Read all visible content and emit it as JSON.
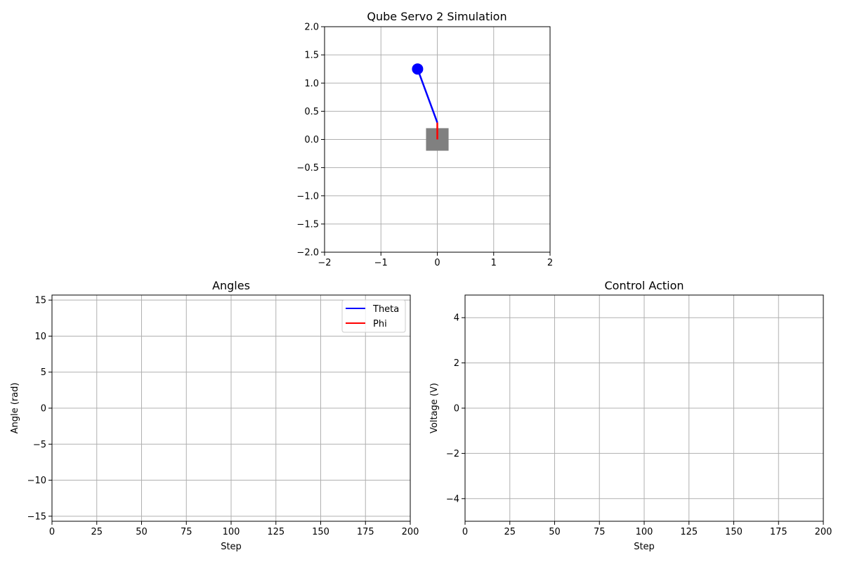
{
  "chart_data": [
    {
      "id": "sim",
      "type": "scatter",
      "title": "Qube Servo 2 Simulation",
      "xlabel": "",
      "ylabel": "",
      "xlim": [
        -2,
        2
      ],
      "ylim": [
        -2,
        2
      ],
      "xticks": [
        -2,
        -1,
        0,
        1,
        2
      ],
      "xtick_labels": [
        "−2",
        "−1",
        "0",
        "1",
        "2"
      ],
      "yticks": [
        -2.0,
        -1.5,
        -1.0,
        -0.5,
        0.0,
        0.5,
        1.0,
        1.5,
        2.0
      ],
      "ytick_labels": [
        "−2.0",
        "−1.5",
        "−1.0",
        "−0.5",
        "0.0",
        "0.5",
        "1.0",
        "1.5",
        "2.0"
      ],
      "grid": true,
      "base_box": {
        "center": [
          0,
          0
        ],
        "half_size": 0.2,
        "color": "#808080"
      },
      "rotary_arm": {
        "from": [
          0,
          0
        ],
        "to": [
          0,
          0.3
        ],
        "color": "#ff0000"
      },
      "pendulum": {
        "from": [
          0,
          0.3
        ],
        "to": [
          -0.35,
          1.25
        ],
        "color": "#0000ff"
      },
      "bob": {
        "x": -0.35,
        "y": 1.25,
        "color": "#0000ff"
      }
    },
    {
      "id": "angles",
      "type": "line",
      "title": "Angles",
      "xlabel": "Step",
      "ylabel": "Angle (rad)",
      "xlim": [
        0,
        200
      ],
      "ylim": [
        -15.7,
        15.7
      ],
      "xticks": [
        0,
        25,
        50,
        75,
        100,
        125,
        150,
        175,
        200
      ],
      "xtick_labels": [
        "0",
        "25",
        "50",
        "75",
        "100",
        "125",
        "150",
        "175",
        "200"
      ],
      "yticks": [
        -15,
        -10,
        -5,
        0,
        5,
        10,
        15
      ],
      "ytick_labels": [
        "−15",
        "−10",
        "−5",
        "0",
        "5",
        "10",
        "15"
      ],
      "grid": true,
      "legend_position": "top-right",
      "series": [
        {
          "name": "Theta",
          "color": "#0000ff",
          "x": [],
          "y": []
        },
        {
          "name": "Phi",
          "color": "#ff0000",
          "x": [],
          "y": []
        }
      ]
    },
    {
      "id": "control",
      "type": "line",
      "title": "Control Action",
      "xlabel": "Step",
      "ylabel": "Voltage (V)",
      "xlim": [
        0,
        200
      ],
      "ylim": [
        -5,
        5
      ],
      "xticks": [
        0,
        25,
        50,
        75,
        100,
        125,
        150,
        175,
        200
      ],
      "xtick_labels": [
        "0",
        "25",
        "50",
        "75",
        "100",
        "125",
        "150",
        "175",
        "200"
      ],
      "yticks": [
        -4,
        -2,
        0,
        2,
        4
      ],
      "ytick_labels": [
        "−4",
        "−2",
        "0",
        "2",
        "4"
      ],
      "grid": true,
      "series": []
    }
  ]
}
